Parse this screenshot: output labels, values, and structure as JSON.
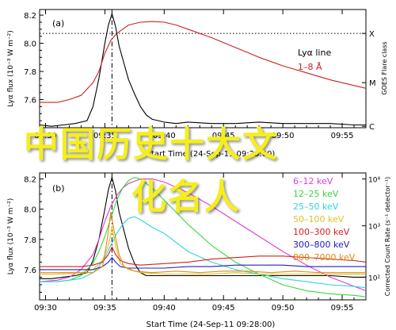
{
  "chart_data": [
    {
      "type": "line",
      "panel_label": "(a)",
      "ylabel": "Lyα flux (10⁻³ W m⁻²)",
      "right_label": "GOES Flare class",
      "xlabel": "Start Time (24-Sep-11 09:28:00)",
      "ylim": [
        7.4,
        8.24
      ],
      "yticks": [
        "7.6",
        "7.8",
        "8.0",
        "8.2"
      ],
      "xlim": [
        29.5,
        57
      ],
      "xticks": [
        {
          "v": 30,
          "label": "09:30"
        },
        {
          "v": 35,
          "label": "09:35"
        },
        {
          "v": 40,
          "label": "09:40"
        },
        {
          "v": 45,
          "label": "09:45"
        },
        {
          "v": 50,
          "label": "09:50"
        },
        {
          "v": 55,
          "label": "09:55"
        }
      ],
      "classes": [
        {
          "label": "X",
          "y": 8.07
        },
        {
          "label": "M",
          "y": 7.72
        },
        {
          "label": "C",
          "y": 7.41
        }
      ],
      "peak_time": 35.6,
      "legend": [
        {
          "name": "Lyα line",
          "color": "#000000"
        },
        {
          "name": "1–8 Å",
          "color": "#cc2020"
        }
      ],
      "series": [
        {
          "name": "Lyα line",
          "color": "#000000",
          "x": [
            29.5,
            30.5,
            31.5,
            32.5,
            33.5,
            34.0,
            34.5,
            35.0,
            35.3,
            35.6,
            35.9,
            36.2,
            36.6,
            37.0,
            37.5,
            38.0,
            38.5,
            39.0,
            40.0,
            41.0,
            42.0,
            44.0,
            46.0,
            48.0,
            50.0,
            52.0,
            54.0,
            56.0,
            57.0
          ],
          "y": [
            7.42,
            7.41,
            7.42,
            7.43,
            7.45,
            7.55,
            7.75,
            8.0,
            8.13,
            8.21,
            8.12,
            7.98,
            7.86,
            7.74,
            7.64,
            7.55,
            7.49,
            7.46,
            7.44,
            7.43,
            7.44,
            7.43,
            7.43,
            7.44,
            7.43,
            7.43,
            7.43,
            7.42,
            7.42
          ]
        },
        {
          "name": "1–8 Å",
          "color": "#cc2020",
          "x": [
            29.5,
            31.0,
            32.0,
            33.0,
            34.0,
            34.5,
            35.0,
            35.5,
            36.0,
            36.5,
            37.0,
            38.0,
            39.0,
            40.0,
            41.0,
            42.0,
            44.0,
            46.0,
            48.0,
            50.0,
            52.0,
            54.0,
            56.0,
            57.0
          ],
          "y": [
            7.58,
            7.58,
            7.6,
            7.63,
            7.72,
            7.8,
            7.93,
            8.02,
            8.07,
            8.1,
            8.13,
            8.15,
            8.155,
            8.15,
            8.13,
            8.1,
            8.04,
            7.97,
            7.9,
            7.84,
            7.79,
            7.74,
            7.7,
            7.68
          ]
        }
      ]
    },
    {
      "type": "line",
      "panel_label": "(b)",
      "ylabel": "Lyα flux (10⁻³ W m⁻²)",
      "right_label": "Corrected Count Rate (s⁻¹ detector⁻¹)",
      "xlabel": "Start Time (24-Sep-11 09:28:00)",
      "ylim": [
        7.4,
        8.24
      ],
      "yticks": [
        "7.6",
        "7.8",
        "8.0",
        "8.2"
      ],
      "right_ticks": [
        {
          "label": "10²",
          "y": 7.55
        },
        {
          "label": "10³",
          "y": 7.89
        },
        {
          "label": "10⁴",
          "y": 8.2
        }
      ],
      "xlim": [
        29.5,
        57
      ],
      "xticks": [
        {
          "v": 30,
          "label": "09:30"
        },
        {
          "v": 35,
          "label": "09:35"
        },
        {
          "v": 40,
          "label": "09:40"
        },
        {
          "v": 45,
          "label": "09:45"
        },
        {
          "v": 50,
          "label": "09:50"
        },
        {
          "v": 55,
          "label": "09:55"
        }
      ],
      "peak_time": 35.6,
      "legend": [
        {
          "name": "6–12 keV",
          "color": "#e23bd9"
        },
        {
          "name": "12–25 keV",
          "color": "#3ad83a"
        },
        {
          "name": "25–50 keV",
          "color": "#2ed3df"
        },
        {
          "name": "50–100 keV",
          "color": "#d8c12a"
        },
        {
          "name": "100–300 keV",
          "color": "#d42020"
        },
        {
          "name": "300–800 keV",
          "color": "#2020c0"
        },
        {
          "name": "800–7000 keV",
          "color": "#e08a10"
        }
      ],
      "series": [
        {
          "name": "Lyα line",
          "color": "#000000",
          "x": [
            29.5,
            30.5,
            31.5,
            32.5,
            33.5,
            34.0,
            34.5,
            35.0,
            35.3,
            35.6,
            35.9,
            36.2,
            36.6,
            37.0,
            37.5,
            38.0,
            38.5,
            39.0,
            40.0,
            41.0,
            42.0,
            44.0,
            46.0,
            48.0,
            50.0,
            52.0,
            54.0,
            56.0,
            57.0
          ],
          "y": [
            7.54,
            7.54,
            7.55,
            7.56,
            7.58,
            7.66,
            7.8,
            8.0,
            8.13,
            8.21,
            8.12,
            7.98,
            7.86,
            7.74,
            7.64,
            7.58,
            7.56,
            7.56,
            7.56,
            7.56,
            7.56,
            7.56,
            7.56,
            7.56,
            7.56,
            7.56,
            7.56,
            7.55,
            7.55
          ]
        },
        {
          "name": "6–12 keV",
          "color": "#e23bd9",
          "x": [
            29.5,
            31.0,
            32.0,
            33.0,
            34.0,
            34.5,
            35.0,
            35.5,
            36.0,
            36.5,
            37.0,
            38.0,
            39.0,
            40.0,
            42.0,
            44.0,
            46.0,
            48.0,
            50.0,
            52.0,
            54.0,
            56.0,
            57.0
          ],
          "y": [
            7.52,
            7.53,
            7.55,
            7.6,
            7.7,
            7.8,
            7.92,
            8.02,
            8.09,
            8.14,
            8.17,
            8.2,
            8.2,
            8.18,
            8.11,
            8.02,
            7.92,
            7.82,
            7.72,
            7.63,
            7.55,
            7.49,
            7.46
          ]
        },
        {
          "name": "12–25 keV",
          "color": "#3ad83a",
          "x": [
            29.5,
            31.0,
            32.0,
            33.0,
            34.0,
            34.5,
            35.0,
            35.5,
            36.0,
            36.5,
            37.0,
            37.5,
            38.0,
            39.0,
            40.0,
            42.0,
            44.0,
            46.0,
            48.0,
            50.0,
            52.0,
            54.0,
            56.0,
            57.0
          ],
          "y": [
            7.52,
            7.52,
            7.53,
            7.56,
            7.64,
            7.72,
            7.82,
            7.94,
            8.06,
            8.14,
            8.19,
            8.21,
            8.2,
            8.14,
            8.06,
            7.9,
            7.76,
            7.65,
            7.57,
            7.5,
            7.46,
            7.44,
            7.43,
            7.42
          ]
        },
        {
          "name": "25–50 keV",
          "color": "#2ed3df",
          "x": [
            29.5,
            31.0,
            32.0,
            33.0,
            34.0,
            34.5,
            35.0,
            35.5,
            36.0,
            36.5,
            37.0,
            37.5,
            38.0,
            39.0,
            40.0,
            41.0,
            42.0,
            44.0,
            46.0,
            48.0,
            50.0,
            52.0,
            54.0,
            56.0,
            57.0
          ],
          "y": [
            7.52,
            7.52,
            7.53,
            7.54,
            7.58,
            7.62,
            7.68,
            7.76,
            7.84,
            7.9,
            7.94,
            7.95,
            7.93,
            7.88,
            7.84,
            7.78,
            7.72,
            7.65,
            7.6,
            7.57,
            7.54,
            7.52,
            7.5,
            7.49,
            7.48
          ]
        },
        {
          "name": "50–100 keV",
          "color": "#d8c12a",
          "x": [
            29.5,
            31.0,
            33.0,
            34.0,
            34.8,
            35.3,
            35.6,
            35.9,
            36.3,
            37.0,
            38.0,
            40.0,
            42.0,
            44.0,
            46.0,
            48.0,
            50.0,
            52.0,
            54.0,
            56.0,
            57.0
          ],
          "y": [
            7.57,
            7.57,
            7.58,
            7.6,
            7.66,
            7.76,
            7.88,
            7.76,
            7.64,
            7.6,
            7.58,
            7.57,
            7.57,
            7.57,
            7.58,
            7.57,
            7.57,
            7.57,
            7.57,
            7.57,
            7.57
          ]
        },
        {
          "name": "100–300 keV",
          "color": "#d42020",
          "x": [
            29.5,
            31.0,
            33.0,
            34.0,
            34.8,
            35.3,
            35.6,
            35.9,
            36.3,
            37.0,
            38.0,
            40.0,
            42.0,
            44.0,
            46.0,
            48.0,
            50.0,
            52.0,
            54.0,
            56.0,
            57.0
          ],
          "y": [
            7.62,
            7.62,
            7.62,
            7.63,
            7.65,
            7.7,
            7.75,
            7.7,
            7.66,
            7.64,
            7.63,
            7.64,
            7.65,
            7.67,
            7.68,
            7.69,
            7.69,
            7.68,
            7.67,
            7.66,
            7.65
          ]
        },
        {
          "name": "300–800 keV",
          "color": "#2020c0",
          "x": [
            29.5,
            31.0,
            33.0,
            34.0,
            34.8,
            35.3,
            35.6,
            35.9,
            36.3,
            37.0,
            38.0,
            40.0,
            42.0,
            44.0,
            46.0,
            48.0,
            50.0,
            52.0,
            54.0,
            56.0,
            57.0
          ],
          "y": [
            7.6,
            7.6,
            7.6,
            7.6,
            7.62,
            7.65,
            7.68,
            7.65,
            7.62,
            7.61,
            7.61,
            7.61,
            7.62,
            7.62,
            7.63,
            7.63,
            7.63,
            7.62,
            7.62,
            7.62,
            7.62
          ]
        },
        {
          "name": "800–7000 keV",
          "color": "#e08a10",
          "x": [
            29.5,
            31.0,
            33.0,
            34.0,
            34.8,
            35.2,
            35.5,
            35.8,
            36.2,
            36.6,
            37.5,
            39.0,
            41.0,
            43.0,
            45.0,
            47.0,
            49.0,
            51.0,
            53.0,
            55.0,
            57.0
          ],
          "y": [
            7.58,
            7.58,
            7.58,
            7.58,
            7.62,
            7.8,
            7.98,
            7.85,
            7.7,
            7.62,
            7.59,
            7.58,
            7.59,
            7.58,
            7.59,
            7.59,
            7.58,
            7.59,
            7.58,
            7.58,
            7.58
          ]
        }
      ]
    }
  ],
  "overlay_text": [
    "中国历史十大文",
    "化名人"
  ]
}
